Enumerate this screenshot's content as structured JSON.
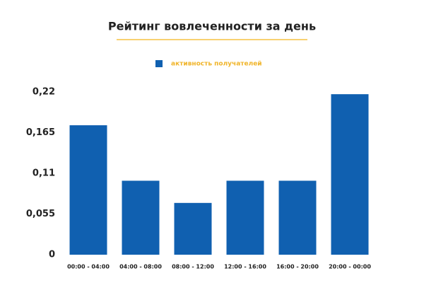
{
  "chart_data": {
    "type": "bar",
    "title": "Рейтинг вовлеченности за день",
    "categories": [
      "00:00 - 04:00",
      "04:00 - 08:00",
      "08:00 - 12:00",
      "12:00 - 16:00",
      "16:00 - 20:00",
      "20:00 - 00:00"
    ],
    "series": [
      {
        "name": "активность получателей",
        "color": "#1060b0",
        "values": [
          0.175,
          0.1,
          0.07,
          0.1,
          0.1,
          0.217
        ]
      }
    ],
    "ylim": [
      0,
      0.22
    ],
    "yticks": [
      0,
      {
        "value": 0.055,
        "label": "0,055"
      },
      {
        "value": 0.11,
        "label": "0,11"
      },
      {
        "value": 0.165,
        "label": "0,165"
      },
      {
        "value": 0.22,
        "label": "0,22"
      }
    ],
    "grid": false
  }
}
